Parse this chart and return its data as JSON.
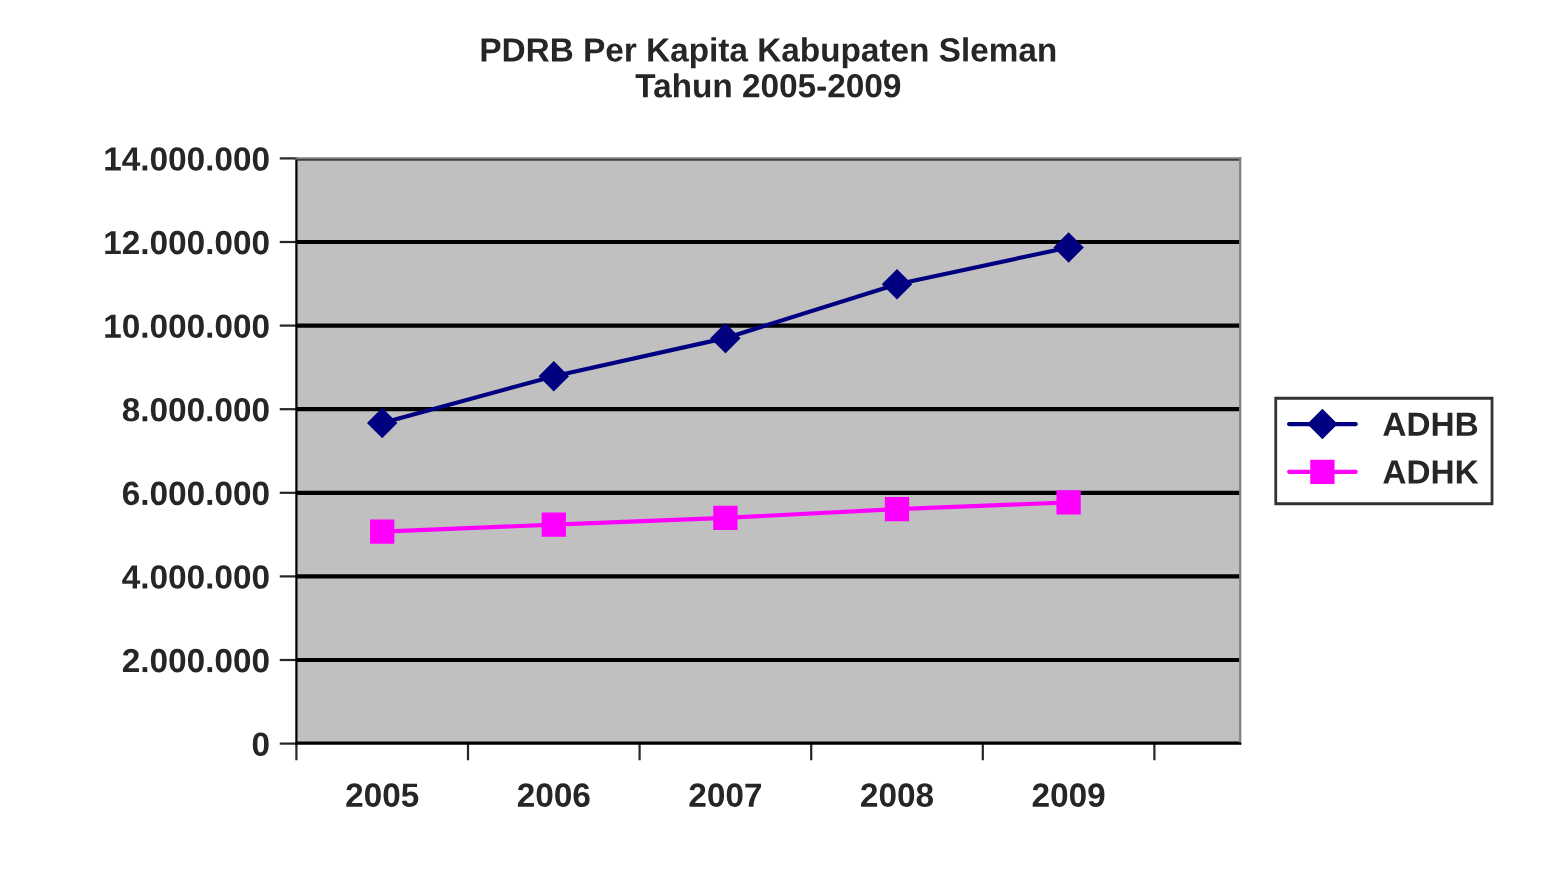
{
  "chart_data": {
    "type": "line",
    "title": "PDRB Per Kapita Kabupaten Sleman\nTahun 2005-2009",
    "categories": [
      "2005",
      "2006",
      "2007",
      "2008",
      "2009"
    ],
    "series": [
      {
        "name": "ADHB",
        "color": "#000080",
        "marker": "diamond",
        "values": [
          7670000,
          8790000,
          9700000,
          10990000,
          11870000
        ]
      },
      {
        "name": "ADHK",
        "color": "#ff00ff",
        "marker": "square",
        "values": [
          5070000,
          5240000,
          5400000,
          5610000,
          5770000
        ]
      }
    ],
    "ylim": [
      0,
      14000000
    ],
    "yticks": [
      {
        "value": 0,
        "label": "0"
      },
      {
        "value": 2000000,
        "label": "2.000.000"
      },
      {
        "value": 4000000,
        "label": "4.000.000"
      },
      {
        "value": 6000000,
        "label": "6.000.000"
      },
      {
        "value": 8000000,
        "label": "8.000.000"
      },
      {
        "value": 10000000,
        "label": "10.000.000"
      },
      {
        "value": 12000000,
        "label": "12.000.000"
      },
      {
        "value": 14000000,
        "label": "14.000.000"
      }
    ],
    "grid": "y",
    "legend": "right",
    "line_style": "solid"
  }
}
